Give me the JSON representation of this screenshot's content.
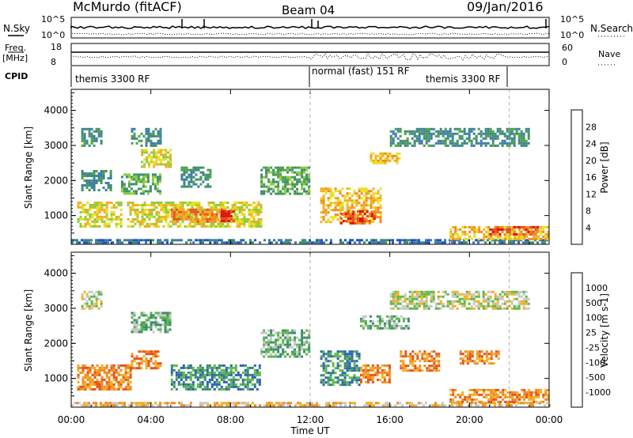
{
  "header": {
    "title": "McMurdo (fitACF)",
    "beam": "Beam 04",
    "date": "09/Jan/2016"
  },
  "top_panels": {
    "nsky_label": "N.Sky",
    "nsearch_label": "N.Search",
    "nsky_ticks": [
      "10^5",
      "10^0"
    ],
    "nsearch_ticks": [
      "10^5",
      "10^0"
    ],
    "freq_label": "Freq.",
    "freq_unit": "[MHz]",
    "freq_ticks": [
      "18",
      "8"
    ],
    "nave_label": "Nave",
    "nave_ticks": [
      "60",
      "0"
    ],
    "cpid_label": "CPID",
    "cpid_segments": [
      {
        "label": "themis 3300 RF",
        "start": 0,
        "end": 12
      },
      {
        "label": "normal (fast) 151 RF",
        "start": 12,
        "end": 22
      },
      {
        "label": "themis 3300 RF",
        "start": 12,
        "end": 22
      }
    ]
  },
  "chart_data": [
    {
      "type": "heatmap",
      "quantity": "power",
      "xlabel": "Time UT",
      "ylabel": "Slant Range [km]",
      "xlim": [
        0,
        24
      ],
      "ylim": [
        180,
        4600
      ],
      "y_ticks": [
        "1000",
        "2000",
        "3000",
        "4000"
      ],
      "colorbar_label": "Power [dB]",
      "colorbar_ticks": [
        "4",
        "8",
        "12",
        "16",
        "20",
        "24",
        "28"
      ],
      "colorbar_colors": [
        "#1010e0",
        "#2050d0",
        "#3c7ab0",
        "#3a8c6e",
        "#4aa04a",
        "#8ccc3c",
        "#e8e020",
        "#f0b020",
        "#f08a20",
        "#e8501c",
        "#e01010"
      ],
      "echo_regions": [
        {
          "t0": 0.0,
          "t1": 24.0,
          "r0": 200,
          "r1": 330,
          "level": 2
        },
        {
          "t0": 19.0,
          "t1": 24.0,
          "r0": 330,
          "r1": 700,
          "level": 7
        },
        {
          "t0": 21.0,
          "t1": 23.5,
          "r0": 450,
          "r1": 700,
          "level": 9
        },
        {
          "t0": 0.3,
          "t1": 2.5,
          "r0": 700,
          "r1": 1400,
          "level": 6
        },
        {
          "t0": 2.8,
          "t1": 9.5,
          "r0": 700,
          "r1": 1400,
          "level": 6
        },
        {
          "t0": 5.0,
          "t1": 8.0,
          "r0": 800,
          "r1": 1200,
          "level": 8
        },
        {
          "t0": 7.5,
          "t1": 8.2,
          "r0": 850,
          "r1": 1150,
          "level": 10
        },
        {
          "t0": 12.5,
          "t1": 15.5,
          "r0": 800,
          "r1": 1800,
          "level": 7
        },
        {
          "t0": 13.5,
          "t1": 15.2,
          "r0": 800,
          "r1": 1150,
          "level": 9
        },
        {
          "t0": 0.5,
          "t1": 2.0,
          "r0": 1700,
          "r1": 2300,
          "level": 3
        },
        {
          "t0": 2.5,
          "t1": 4.5,
          "r0": 1600,
          "r1": 2200,
          "level": 4
        },
        {
          "t0": 5.5,
          "t1": 7.0,
          "r0": 1800,
          "r1": 2400,
          "level": 3
        },
        {
          "t0": 9.5,
          "t1": 12.0,
          "r0": 1600,
          "r1": 2400,
          "level": 4
        },
        {
          "t0": 3.5,
          "t1": 5.0,
          "r0": 2400,
          "r1": 2900,
          "level": 6
        },
        {
          "t0": 15.0,
          "t1": 16.5,
          "r0": 2500,
          "r1": 2800,
          "level": 7
        },
        {
          "t0": 16.0,
          "t1": 23.0,
          "r0": 3000,
          "r1": 3500,
          "level": 3
        },
        {
          "t0": 0.5,
          "t1": 1.5,
          "r0": 3000,
          "r1": 3500,
          "level": 3
        },
        {
          "t0": 3.0,
          "t1": 4.5,
          "r0": 3000,
          "r1": 3500,
          "level": 3
        }
      ]
    },
    {
      "type": "heatmap",
      "quantity": "velocity",
      "xlabel": "Time UT",
      "ylabel": "Slant Range [km]",
      "xlim": [
        0,
        24
      ],
      "ylim": [
        180,
        4600
      ],
      "y_ticks": [
        "1000",
        "2000",
        "3000",
        "4000"
      ],
      "x_ticks": [
        "00:00",
        "04:00",
        "08:00",
        "12:00",
        "16:00",
        "20:00",
        "00:00"
      ],
      "colorbar_label": "Velocity [m s-1]",
      "colorbar_ticks": [
        "1000",
        "500",
        "100",
        "25",
        "-25",
        "-100",
        "-500",
        "-1000"
      ],
      "colorbar_colors": [
        "#1c3aa8",
        "#2a60b8",
        "#3a8c6e",
        "#5cb84a",
        "#c8c8c8",
        "#f0b020",
        "#f08a20",
        "#e8501c",
        "#e01010"
      ],
      "echo_regions": [
        {
          "t0": 0.0,
          "t1": 24.0,
          "r0": 200,
          "r1": 330,
          "level": 5
        },
        {
          "t0": 19.0,
          "t1": 24.0,
          "r0": 330,
          "r1": 700,
          "level": 6
        },
        {
          "t0": 0.3,
          "t1": 3.0,
          "r0": 700,
          "r1": 1400,
          "level": 6
        },
        {
          "t0": 3.0,
          "t1": 4.5,
          "r0": 1300,
          "r1": 1800,
          "level": 6
        },
        {
          "t0": 5.0,
          "t1": 9.5,
          "r0": 700,
          "r1": 1400,
          "level": 2
        },
        {
          "t0": 12.5,
          "t1": 14.5,
          "r0": 800,
          "r1": 1800,
          "level": 2
        },
        {
          "t0": 14.5,
          "t1": 16.0,
          "r0": 900,
          "r1": 1400,
          "level": 6
        },
        {
          "t0": 16.5,
          "t1": 18.5,
          "r0": 1200,
          "r1": 1800,
          "level": 6
        },
        {
          "t0": 19.5,
          "t1": 21.5,
          "r0": 1400,
          "r1": 1800,
          "level": 6
        },
        {
          "t0": 3.0,
          "t1": 5.0,
          "r0": 2300,
          "r1": 2900,
          "level": 3
        },
        {
          "t0": 9.5,
          "t1": 12.0,
          "r0": 1600,
          "r1": 2400,
          "level": 3
        },
        {
          "t0": 14.5,
          "t1": 17.0,
          "r0": 2400,
          "r1": 2800,
          "level": 3
        },
        {
          "t0": 16.0,
          "t1": 23.0,
          "r0": 3000,
          "r1": 3500,
          "level": 4
        },
        {
          "t0": 0.5,
          "t1": 1.5,
          "r0": 3000,
          "r1": 3500,
          "level": 4
        }
      ]
    }
  ],
  "footer": {
    "x_axis_label": "Time UT"
  }
}
